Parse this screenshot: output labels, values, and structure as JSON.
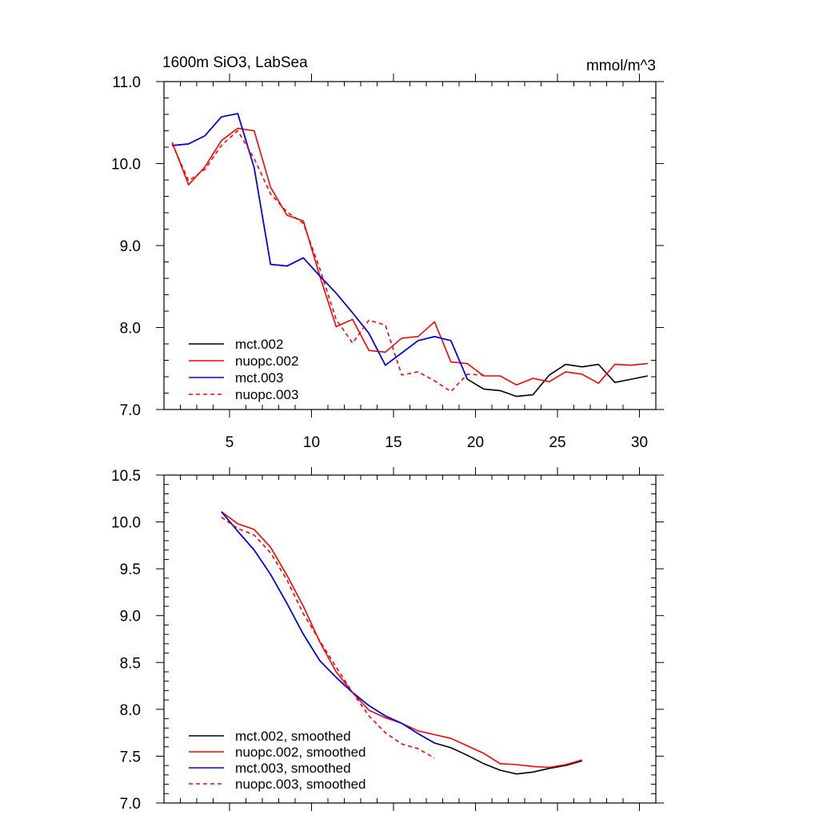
{
  "chart_data": [
    {
      "type": "line",
      "title": "1600m SiO3, LabSea",
      "units": "mmol/m^3",
      "xlim": [
        1,
        31
      ],
      "ylim": [
        7.0,
        11.0
      ],
      "x_ticks": [
        5,
        10,
        15,
        20,
        25,
        30
      ],
      "x_tick_labels": [
        "5",
        "10",
        "15",
        "20",
        "25",
        "30"
      ],
      "y_ticks": [
        7.0,
        8.0,
        9.0,
        10.0,
        11.0
      ],
      "y_tick_labels": [
        "7.0",
        "8.0",
        "9.0",
        "10.0",
        "11.0"
      ],
      "legend_position": "lower-left",
      "series": [
        {
          "name": "mct.002",
          "color": "#000000",
          "dash": "solid",
          "x": [
            1.5,
            2.5,
            3.5,
            4.5,
            5.5,
            6.5,
            7.5,
            8.5,
            9.5,
            10.5,
            11.5,
            12.5,
            13.5,
            14.5,
            15.5,
            16.5,
            17.5,
            18.5,
            19.5,
            20.5,
            21.5,
            22.5,
            23.5,
            24.5,
            25.5,
            26.5,
            27.5,
            28.5,
            29.5,
            30.5
          ],
          "values": [
            10.22,
            10.24,
            10.34,
            10.57,
            10.61,
            9.95,
            8.77,
            8.75,
            8.85,
            8.63,
            8.42,
            8.18,
            7.93,
            7.54,
            7.69,
            7.84,
            7.89,
            7.84,
            7.37,
            7.25,
            7.23,
            7.16,
            7.18,
            7.42,
            7.55,
            7.52,
            7.55,
            7.33,
            7.37,
            7.41
          ]
        },
        {
          "name": "nuopc.002",
          "color": "#ff0000",
          "dash": "solid",
          "x": [
            1.5,
            2.5,
            3.5,
            4.5,
            5.5,
            6.5,
            7.5,
            8.5,
            9.5,
            10.5,
            11.5,
            12.5,
            13.5,
            14.5,
            15.5,
            16.5,
            17.5,
            18.5,
            19.5,
            20.5,
            21.5,
            22.5,
            23.5,
            24.5,
            25.5,
            26.5,
            27.5,
            28.5,
            29.5,
            30.5
          ],
          "values": [
            10.26,
            9.74,
            9.96,
            10.28,
            10.43,
            10.4,
            9.71,
            9.37,
            9.3,
            8.63,
            8.01,
            8.1,
            7.72,
            7.7,
            7.87,
            7.89,
            8.07,
            7.58,
            7.56,
            7.41,
            7.41,
            7.3,
            7.38,
            7.34,
            7.46,
            7.43,
            7.32,
            7.55,
            7.54,
            7.56
          ]
        },
        {
          "name": "mct.003",
          "color": "#0000ff",
          "dash": "solid",
          "x": [
            1.5,
            2.5,
            3.5,
            4.5,
            5.5,
            6.5,
            7.5,
            8.5,
            9.5,
            10.5,
            11.5,
            12.5,
            13.5,
            14.5,
            15.5,
            16.5,
            17.5,
            18.5,
            19.5
          ],
          "values": [
            10.22,
            10.24,
            10.34,
            10.57,
            10.61,
            9.95,
            8.77,
            8.75,
            8.85,
            8.63,
            8.42,
            8.18,
            7.93,
            7.54,
            7.69,
            7.84,
            7.89,
            7.84,
            7.37
          ]
        },
        {
          "name": "nuopc.003",
          "color": "#ff0000",
          "dash": "dashed",
          "x": [
            1.5,
            2.5,
            3.5,
            4.5,
            5.5,
            6.5,
            7.5,
            8.5,
            9.5,
            10.5,
            11.5,
            12.5,
            13.5,
            14.5,
            15.5,
            16.5,
            17.5,
            18.5,
            19.5,
            20.5
          ],
          "values": [
            10.24,
            9.79,
            9.93,
            10.22,
            10.4,
            10.06,
            9.63,
            9.41,
            9.27,
            8.72,
            8.1,
            7.81,
            8.09,
            8.03,
            7.42,
            7.46,
            7.35,
            7.22,
            7.43,
            7.42
          ]
        }
      ]
    },
    {
      "type": "line",
      "title": "",
      "xlim": [
        1,
        31
      ],
      "ylim": [
        7.0,
        10.5
      ],
      "x_ticks": [
        5,
        10,
        15,
        20,
        25,
        30
      ],
      "x_tick_labels": [],
      "y_ticks": [
        7.0,
        7.5,
        8.0,
        8.5,
        9.0,
        9.5,
        10.0,
        10.5
      ],
      "y_tick_labels": [
        "7.0",
        "7.5",
        "8.0",
        "8.5",
        "9.0",
        "9.5",
        "10.0",
        "10.5"
      ],
      "legend_position": "lower-left",
      "series": [
        {
          "name": "mct.002, smoothed",
          "color": "#000000",
          "dash": "solid",
          "x": [
            4.5,
            5.5,
            6.5,
            7.5,
            8.5,
            9.5,
            10.5,
            11.5,
            12.5,
            13.5,
            14.5,
            15.5,
            16.5,
            17.5,
            18.5,
            19.5,
            20.5,
            21.5,
            22.5,
            23.5,
            24.5,
            25.5,
            26.5
          ],
          "values": [
            10.11,
            9.9,
            9.7,
            9.44,
            9.13,
            8.8,
            8.52,
            8.34,
            8.18,
            8.04,
            7.93,
            7.85,
            7.74,
            7.64,
            7.59,
            7.51,
            7.42,
            7.35,
            7.31,
            7.33,
            7.37,
            7.4,
            7.45
          ]
        },
        {
          "name": "nuopc.002, smoothed",
          "color": "#ff0000",
          "dash": "solid",
          "x": [
            4.5,
            5.5,
            6.5,
            7.5,
            8.5,
            9.5,
            10.5,
            11.5,
            12.5,
            13.5,
            14.5,
            15.5,
            16.5,
            17.5,
            18.5,
            19.5,
            20.5,
            21.5,
            22.5,
            23.5,
            24.5,
            25.5,
            26.5
          ],
          "values": [
            10.11,
            9.98,
            9.92,
            9.73,
            9.43,
            9.1,
            8.72,
            8.4,
            8.18,
            7.99,
            7.91,
            7.85,
            7.77,
            7.73,
            7.69,
            7.61,
            7.53,
            7.42,
            7.41,
            7.39,
            7.38,
            7.41,
            7.46
          ]
        },
        {
          "name": "mct.003, smoothed",
          "color": "#0000ff",
          "dash": "solid",
          "x": [
            4.5,
            5.5,
            6.5,
            7.5,
            8.5,
            9.5,
            10.5,
            11.5,
            12.5,
            13.5,
            14.5,
            15.5,
            16.5,
            17.5
          ],
          "values": [
            10.11,
            9.9,
            9.7,
            9.44,
            9.13,
            8.8,
            8.52,
            8.34,
            8.18,
            8.04,
            7.93,
            7.85,
            7.74,
            7.64
          ]
        },
        {
          "name": "nuopc.003, smoothed",
          "color": "#ff0000",
          "dash": "dashed",
          "x": [
            4.5,
            5.5,
            6.5,
            7.5,
            8.5,
            9.5,
            10.5,
            11.5,
            12.5,
            13.5,
            14.5,
            15.5,
            16.5,
            17.5
          ],
          "values": [
            10.05,
            9.93,
            9.86,
            9.67,
            9.38,
            9.02,
            8.73,
            8.45,
            8.18,
            7.93,
            7.75,
            7.63,
            7.58,
            7.48
          ]
        }
      ]
    }
  ]
}
